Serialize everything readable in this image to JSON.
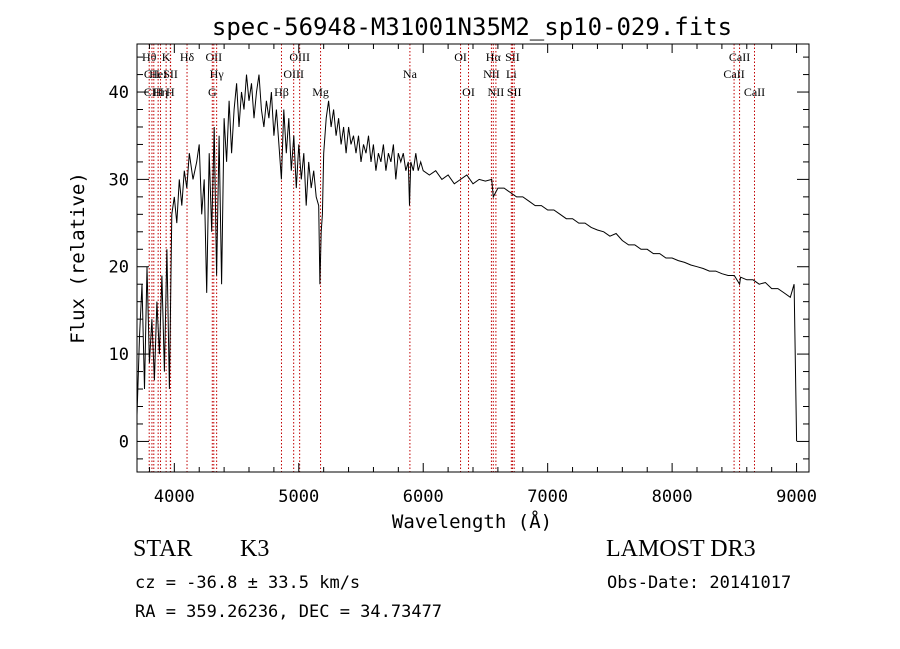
{
  "chart_data": {
    "type": "line",
    "title": "spec-56948-M31001N35M2_sp10-029.fits",
    "xlabel": "Wavelength (Å)",
    "ylabel": "Flux (relative)",
    "xlim": [
      3700,
      9100
    ],
    "ylim": [
      -3.5,
      45.5
    ],
    "x_ticks": [
      4000,
      5000,
      6000,
      7000,
      8000,
      9000
    ],
    "y_ticks": [
      0,
      10,
      20,
      30,
      40
    ],
    "series": [
      {
        "name": "spectrum",
        "x": [
          3700,
          3720,
          3740,
          3760,
          3780,
          3800,
          3820,
          3840,
          3860,
          3880,
          3900,
          3920,
          3940,
          3960,
          3980,
          4000,
          4020,
          4040,
          4060,
          4080,
          4100,
          4120,
          4150,
          4180,
          4200,
          4220,
          4240,
          4260,
          4280,
          4300,
          4320,
          4340,
          4360,
          4380,
          4400,
          4420,
          4440,
          4460,
          4480,
          4500,
          4520,
          4540,
          4560,
          4580,
          4600,
          4620,
          4640,
          4660,
          4680,
          4700,
          4720,
          4740,
          4760,
          4780,
          4800,
          4820,
          4840,
          4860,
          4880,
          4900,
          4920,
          4940,
          4960,
          4980,
          5000,
          5020,
          5040,
          5060,
          5080,
          5100,
          5120,
          5140,
          5160,
          5170,
          5180,
          5190,
          5200,
          5220,
          5240,
          5260,
          5280,
          5300,
          5320,
          5340,
          5360,
          5380,
          5400,
          5420,
          5440,
          5460,
          5480,
          5500,
          5520,
          5540,
          5560,
          5580,
          5600,
          5620,
          5640,
          5660,
          5680,
          5700,
          5720,
          5740,
          5760,
          5780,
          5800,
          5820,
          5840,
          5860,
          5880,
          5890,
          5900,
          5920,
          5940,
          5960,
          5980,
          6000,
          6050,
          6100,
          6150,
          6200,
          6250,
          6300,
          6350,
          6400,
          6450,
          6500,
          6550,
          6563,
          6600,
          6650,
          6700,
          6750,
          6800,
          6850,
          6900,
          6950,
          7000,
          7050,
          7100,
          7150,
          7200,
          7250,
          7300,
          7350,
          7400,
          7450,
          7500,
          7550,
          7600,
          7650,
          7700,
          7750,
          7800,
          7850,
          7900,
          7950,
          8000,
          8050,
          8100,
          8150,
          8200,
          8250,
          8300,
          8350,
          8400,
          8450,
          8500,
          8542,
          8550,
          8600,
          8650,
          8700,
          8750,
          8800,
          8850,
          8900,
          8950,
          8980,
          9000
        ],
        "y": [
          3,
          12,
          18,
          6,
          20,
          9,
          14,
          7,
          16,
          10,
          19,
          8,
          22,
          6,
          26,
          28,
          25,
          30,
          27,
          31,
          29,
          33,
          30,
          32,
          34,
          26,
          30,
          17,
          33,
          24,
          36,
          19,
          35,
          18,
          37,
          32,
          39,
          33,
          38,
          41,
          36,
          40,
          38,
          42,
          39,
          41,
          37,
          40,
          42,
          38,
          36,
          39,
          37,
          40,
          35,
          38,
          34,
          30,
          38,
          33,
          37,
          31,
          35,
          29,
          34,
          30,
          33,
          27,
          32,
          29,
          31,
          28,
          27,
          18,
          24,
          26,
          33,
          37,
          39,
          36,
          38,
          35,
          37,
          34,
          36,
          33,
          36,
          34,
          35,
          33,
          35,
          32,
          34,
          33,
          35,
          32,
          34,
          31,
          33,
          32,
          34,
          31,
          33,
          32,
          34,
          30,
          33,
          32,
          33,
          31,
          32,
          27,
          32,
          31,
          33,
          31,
          32,
          31,
          30.5,
          31,
          30,
          30.5,
          29.5,
          30,
          30.5,
          29.5,
          30,
          29.8,
          30,
          28,
          29,
          29,
          28.5,
          28,
          28,
          27.5,
          27,
          27,
          26.5,
          26.5,
          26,
          25.5,
          25.5,
          25,
          25,
          24.5,
          24.2,
          24,
          23.5,
          23.8,
          23,
          22.5,
          22.5,
          22,
          22,
          21.5,
          21.5,
          21,
          21,
          20.7,
          20.5,
          20.2,
          20,
          19.8,
          19.5,
          19.5,
          19.2,
          19,
          19,
          18,
          18.8,
          18.5,
          18.5,
          18,
          18.2,
          17.5,
          17.5,
          17,
          16.5,
          18,
          0
        ]
      }
    ],
    "lines": [
      {
        "label": "Hθ",
        "x": 3798,
        "row": 1
      },
      {
        "label": "CII",
        "x": 3820,
        "row": 2
      },
      {
        "label": "CIII",
        "x": 3835,
        "row": 3
      },
      {
        "label": "HeI",
        "x": 3870,
        "row": 2
      },
      {
        "label": "K",
        "x": 3934,
        "row": 1
      },
      {
        "label": "Hη",
        "x": 3889,
        "row": 3
      },
      {
        "label": "SII",
        "x": 3970,
        "row": 2
      },
      {
        "label": "H",
        "x": 3968,
        "row": 3
      },
      {
        "label": "Hδ",
        "x": 4102,
        "row": 1
      },
      {
        "label": "OII",
        "x": 4317,
        "row": 1
      },
      {
        "label": "Hγ",
        "x": 4340,
        "row": 2
      },
      {
        "label": "G",
        "x": 4305,
        "row": 3
      },
      {
        "label": "Hβ",
        "x": 4861,
        "row": 3
      },
      {
        "label": "OIII",
        "x": 5007,
        "row": 1
      },
      {
        "label": "OIII",
        "x": 4959,
        "row": 2
      },
      {
        "label": "Mg",
        "x": 5175,
        "row": 3
      },
      {
        "label": "Na",
        "x": 5893,
        "row": 2
      },
      {
        "label": "OI",
        "x": 6300,
        "row": 1
      },
      {
        "label": "OI",
        "x": 6364,
        "row": 3
      },
      {
        "label": "Hα",
        "x": 6563,
        "row": 1
      },
      {
        "label": "NII",
        "x": 6548,
        "row": 2
      },
      {
        "label": "NII",
        "x": 6584,
        "row": 3
      },
      {
        "label": "SII",
        "x": 6717,
        "row": 1
      },
      {
        "label": "Li",
        "x": 6708,
        "row": 2
      },
      {
        "label": "SII",
        "x": 6731,
        "row": 3
      },
      {
        "label": "CaII",
        "x": 8542,
        "row": 1
      },
      {
        "label": "CaII",
        "x": 8498,
        "row": 2
      },
      {
        "label": "CaII",
        "x": 8662,
        "row": 3
      }
    ]
  },
  "info": {
    "object_class": "STAR",
    "subclass": "K3",
    "survey": "LAMOST DR3",
    "redshift": "cz = -36.8 ± 33.5 km/s",
    "obs_date": "Obs-Date: 20141017",
    "coords": "RA = 359.26236, DEC =  34.73477"
  },
  "colors": {
    "axis": "#000000",
    "spectrum": "#000000",
    "line_marker": "#c00000"
  }
}
